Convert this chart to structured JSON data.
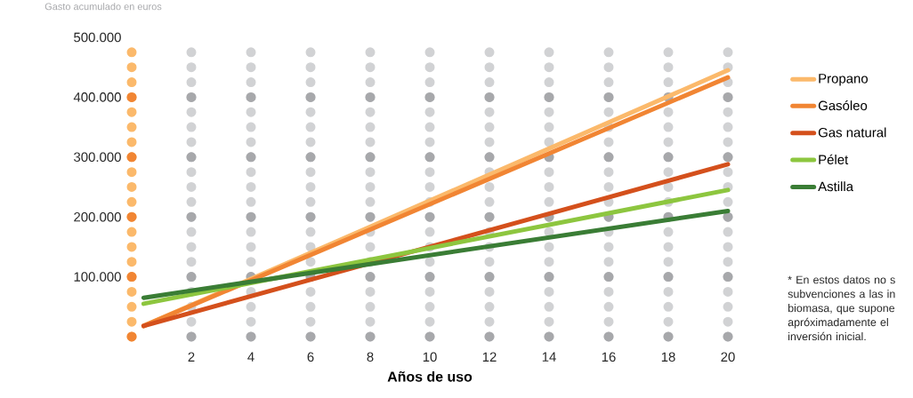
{
  "chart_data": {
    "type": "line",
    "ylabel": "Gasto acumulado en euros",
    "xlabel": "Años de uso",
    "x": [
      0.4,
      20
    ],
    "xlim": [
      0,
      20
    ],
    "xticks": [
      2,
      4,
      6,
      8,
      10,
      12,
      14,
      16,
      18,
      20
    ],
    "ylim": [
      0,
      500000
    ],
    "yticks": [
      {
        "value": 100000,
        "label": "100.000"
      },
      {
        "value": 200000,
        "label": "200.000"
      },
      {
        "value": 300000,
        "label": "300.000"
      },
      {
        "value": 400000,
        "label": "400.000"
      },
      {
        "value": 500000,
        "label": "500.000"
      }
    ],
    "grid": "x",
    "legend": "right",
    "annotations": [
      "* En estos datos no s subvenciones a las in biomasa, que supone apróximadamente el inversión inicial."
    ],
    "series": [
      {
        "name": "Propano",
        "color": "#fbb96b",
        "values": [
          18000,
          445000
        ]
      },
      {
        "name": "Gasóleo",
        "color": "#f18533",
        "values": [
          18000,
          433000
        ]
      },
      {
        "name": "Gas natural",
        "color": "#d4501c",
        "values": [
          18000,
          288000
        ]
      },
      {
        "name": "Pélet",
        "color": "#8dc63f",
        "values": [
          55000,
          245000
        ]
      },
      {
        "name": "Astilla",
        "color": "#3a7d35",
        "values": [
          65000,
          210000
        ]
      }
    ]
  }
}
